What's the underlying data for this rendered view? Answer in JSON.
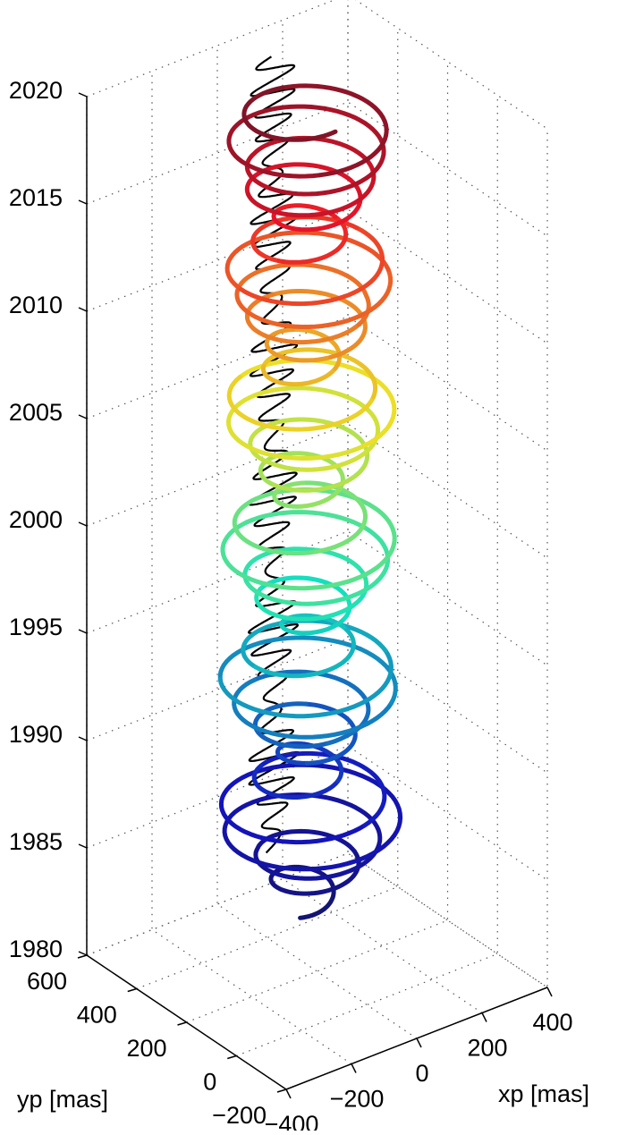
{
  "chart_data": {
    "type": "line",
    "dimensions": "3d",
    "xlabel": "xp [mas]",
    "ylabel": "yp [mas]",
    "zlabel": "",
    "xlim": [
      -400,
      400
    ],
    "ylim": [
      -200,
      600
    ],
    "zlim": [
      1980,
      2020
    ],
    "x_ticks": [
      -400,
      -200,
      0,
      200,
      400
    ],
    "y_ticks": [
      -200,
      0,
      200,
      400,
      600
    ],
    "z_ticks": [
      1980,
      1985,
      1990,
      1995,
      2000,
      2005,
      2010,
      2015,
      2020
    ],
    "grid": true,
    "colormap": "jet",
    "series": [
      {
        "kind": "polar-motion-trajectory",
        "t_start": 1982.0,
        "t_end": 2019.0,
        "mean_x": 60,
        "mean_y": 310,
        "annual_amplitude": 90,
        "chandler_amplitude": 170,
        "chandler_period_years": 1.19,
        "color_by": "time"
      },
      {
        "kind": "projection-on-x-z-wall",
        "color": "#000000",
        "t_start": 1982.0,
        "t_end": 2019.0
      }
    ],
    "colors": {
      "line_start": "#2b2f98",
      "line_end": "#8b1414",
      "projection": "#000000"
    }
  }
}
